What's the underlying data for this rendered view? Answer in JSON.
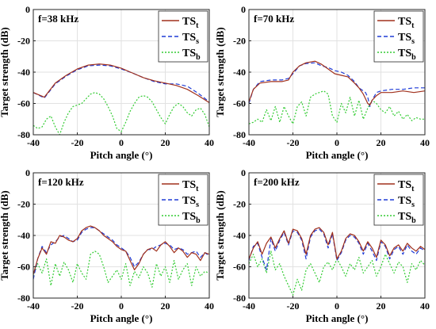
{
  "chart_data": [
    {
      "type": "line",
      "title": "f=38 kHz",
      "xlabel": "Pitch angle (°)",
      "ylabel": "Target strength (dB)",
      "xlim": [
        -40,
        40
      ],
      "ylim": [
        -80,
        0
      ],
      "xticks": [
        "-40",
        "-20",
        "0",
        "20",
        "40"
      ],
      "yticks": [
        "0",
        "-20",
        "-40",
        "-60",
        "-80"
      ],
      "grid": true,
      "legend_position": "top-right",
      "colors": {
        "TSt": "#a0301c",
        "TSs": "#1f3bd6",
        "TSb": "#33cc33"
      },
      "series": [
        {
          "name": "TSt",
          "x": [
            -40,
            -35,
            -30,
            -25,
            -20,
            -15,
            -10,
            -5,
            0,
            5,
            10,
            15,
            20,
            25,
            30,
            35,
            40
          ],
          "y": [
            -53,
            -56,
            -47,
            -42,
            -38,
            -35.5,
            -34.8,
            -35.5,
            -37.5,
            -40.5,
            -43.5,
            -45.5,
            -47,
            -48.5,
            -51,
            -55,
            -59.5
          ]
        },
        {
          "name": "TSs",
          "x": [
            -40,
            -35,
            -30,
            -25,
            -20,
            -15,
            -10,
            -5,
            0,
            5,
            10,
            15,
            20,
            25,
            30,
            35,
            40
          ],
          "y": [
            -53,
            -56.5,
            -47.5,
            -42.5,
            -38.5,
            -36,
            -35.5,
            -36,
            -38,
            -40.5,
            -43.5,
            -46,
            -47.5,
            -47.5,
            -49,
            -53.5,
            -59
          ]
        },
        {
          "name": "TSb",
          "x": [
            -40,
            -38,
            -36,
            -34,
            -32,
            -30,
            -28,
            -26,
            -24,
            -22,
            -20,
            -18,
            -16,
            -14,
            -12,
            -10,
            -8,
            -6,
            -4,
            -2,
            0,
            2,
            4,
            6,
            8,
            10,
            12,
            14,
            16,
            18,
            20,
            22,
            24,
            26,
            28,
            30,
            32,
            34,
            36,
            38,
            40
          ],
          "y": [
            -74,
            -76,
            -75,
            -70,
            -68,
            -75,
            -80,
            -72,
            -66,
            -62,
            -61,
            -60,
            -57,
            -54,
            -53,
            -54,
            -57,
            -62,
            -68,
            -76,
            -78,
            -72,
            -65,
            -60,
            -56,
            -55,
            -56,
            -59,
            -64,
            -69,
            -73,
            -67,
            -62,
            -60,
            -62,
            -66,
            -68,
            -64,
            -63,
            -67,
            -75
          ]
        }
      ]
    },
    {
      "type": "line",
      "title": "f=70 kHz",
      "xlabel": "Pitch angle (°)",
      "ylabel": "Target strength (dB)",
      "xlim": [
        -40,
        40
      ],
      "ylim": [
        -80,
        0
      ],
      "xticks": [
        "-40",
        "-20",
        "0",
        "20",
        "40"
      ],
      "yticks": [
        "0",
        "-20",
        "-40",
        "-60",
        "-80"
      ],
      "grid": true,
      "legend_position": "top-right",
      "colors": {
        "TSt": "#a0301c",
        "TSs": "#1f3bd6",
        "TSb": "#33cc33"
      },
      "series": [
        {
          "name": "TSt",
          "x": [
            -40,
            -38,
            -35,
            -30,
            -25,
            -22,
            -20,
            -17,
            -14,
            -10,
            -7,
            -4,
            -1,
            2,
            5,
            8,
            10,
            12,
            13,
            14,
            15,
            16,
            18,
            20,
            25,
            30,
            35,
            40
          ],
          "y": [
            -59,
            -51,
            -47,
            -46,
            -46,
            -45,
            -40,
            -36,
            -34,
            -33,
            -35,
            -38,
            -41,
            -42,
            -43,
            -47,
            -50,
            -54,
            -57,
            -60,
            -61,
            -58,
            -55,
            -53,
            -53,
            -52,
            -53,
            -52
          ]
        },
        {
          "name": "TSs",
          "x": [
            -40,
            -38,
            -35,
            -30,
            -25,
            -22,
            -20,
            -17,
            -14,
            -10,
            -7,
            -4,
            -1,
            2,
            5,
            8,
            10,
            12,
            13,
            14,
            15,
            16,
            18,
            20,
            25,
            30,
            35,
            40
          ],
          "y": [
            -60,
            -51,
            -46,
            -45,
            -45,
            -44,
            -41,
            -36,
            -34.5,
            -34,
            -36,
            -37,
            -39,
            -40,
            -42,
            -46,
            -50,
            -52,
            -53,
            -56,
            -62,
            -58,
            -53,
            -52,
            -51,
            -51,
            -50,
            -50
          ]
        },
        {
          "name": "TSb",
          "x": [
            -40,
            -38,
            -36,
            -34,
            -32,
            -30,
            -28,
            -26,
            -24,
            -22,
            -20,
            -18,
            -16,
            -14,
            -12,
            -10,
            -8,
            -6,
            -4,
            -2,
            0,
            2,
            4,
            6,
            8,
            10,
            12,
            14,
            16,
            18,
            20,
            22,
            24,
            26,
            28,
            30,
            32,
            34,
            36,
            38,
            40
          ],
          "y": [
            -73,
            -72,
            -70,
            -72,
            -64,
            -71,
            -62,
            -72,
            -62,
            -68,
            -73,
            -62,
            -59,
            -68,
            -56,
            -54,
            -53,
            -52,
            -54,
            -68,
            -72,
            -60,
            -66,
            -56,
            -68,
            -58,
            -70,
            -63,
            -58,
            -60,
            -64,
            -66,
            -62,
            -68,
            -65,
            -70,
            -67,
            -71,
            -69,
            -70,
            -70
          ]
        }
      ]
    },
    {
      "type": "line",
      "title": "f=120 kHz",
      "xlabel": "Pitch angle (°)",
      "ylabel": "Target strength (dB)",
      "xlim": [
        -40,
        40
      ],
      "ylim": [
        -80,
        0
      ],
      "xticks": [
        "-40",
        "-20",
        "0",
        "20",
        "40"
      ],
      "yticks": [
        "0",
        "-20",
        "-40",
        "-60",
        "-80"
      ],
      "grid": true,
      "legend_position": "top-right",
      "colors": {
        "TSt": "#a0301c",
        "TSs": "#1f3bd6",
        "TSb": "#33cc33"
      },
      "series": [
        {
          "name": "TSt",
          "x": [
            -40,
            -38,
            -36,
            -34,
            -32,
            -30,
            -28,
            -26,
            -24,
            -22,
            -20,
            -18,
            -16,
            -14,
            -12,
            -10,
            -8,
            -6,
            -4,
            -2,
            0,
            2,
            4,
            6,
            8,
            10,
            12,
            14,
            16,
            18,
            20,
            22,
            24,
            26,
            28,
            30,
            32,
            34,
            36,
            38,
            40
          ],
          "y": [
            -65,
            -55,
            -48,
            -52,
            -44,
            -45,
            -40,
            -41,
            -43,
            -44,
            -42,
            -37,
            -35,
            -34,
            -35,
            -37,
            -40,
            -42,
            -44,
            -47,
            -49,
            -50,
            -56,
            -62,
            -58,
            -52,
            -49,
            -48,
            -50,
            -46,
            -44,
            -47,
            -51,
            -48,
            -50,
            -54,
            -51,
            -52,
            -56,
            -51,
            -52
          ]
        },
        {
          "name": "TSs",
          "x": [
            -40,
            -38,
            -36,
            -34,
            -32,
            -30,
            -28,
            -26,
            -24,
            -22,
            -20,
            -18,
            -16,
            -14,
            -12,
            -10,
            -8,
            -6,
            -4,
            -2,
            0,
            2,
            4,
            6,
            8,
            10,
            12,
            14,
            16,
            18,
            20,
            22,
            24,
            26,
            28,
            30,
            32,
            34,
            36,
            38,
            40
          ],
          "y": [
            -68,
            -55,
            -47,
            -51,
            -46,
            -44,
            -41,
            -40,
            -42,
            -44,
            -43,
            -38,
            -36,
            -35,
            -35,
            -37,
            -39,
            -41,
            -43,
            -46,
            -48,
            -50,
            -54,
            -60,
            -57,
            -52,
            -49,
            -49,
            -47,
            -46,
            -45,
            -46,
            -49,
            -48,
            -49,
            -52,
            -51,
            -50,
            -54,
            -51,
            -53
          ]
        },
        {
          "name": "TSb",
          "x": [
            -40,
            -38,
            -36,
            -34,
            -32,
            -30,
            -28,
            -26,
            -24,
            -22,
            -20,
            -18,
            -16,
            -14,
            -12,
            -10,
            -8,
            -6,
            -4,
            -2,
            0,
            2,
            4,
            6,
            8,
            10,
            12,
            14,
            16,
            18,
            20,
            22,
            24,
            26,
            28,
            30,
            32,
            34,
            36,
            38,
            40
          ],
          "y": [
            -66,
            -58,
            -64,
            -55,
            -72,
            -58,
            -66,
            -57,
            -62,
            -70,
            -58,
            -64,
            -68,
            -52,
            -50,
            -52,
            -60,
            -70,
            -66,
            -62,
            -68,
            -58,
            -72,
            -63,
            -67,
            -60,
            -64,
            -73,
            -58,
            -66,
            -60,
            -70,
            -56,
            -68,
            -62,
            -58,
            -72,
            -60,
            -66,
            -63,
            -64
          ]
        }
      ]
    },
    {
      "type": "line",
      "title": "f=200 kHz",
      "xlabel": "Pitch angle (°)",
      "ylabel": "Target strength (dB)",
      "xlim": [
        -40,
        40
      ],
      "ylim": [
        -80,
        0
      ],
      "xticks": [
        "-40",
        "-20",
        "0",
        "20",
        "40"
      ],
      "yticks": [
        "0",
        "-20",
        "-40",
        "-60",
        "-80"
      ],
      "grid": true,
      "legend_position": "top-right",
      "colors": {
        "TSt": "#a0301c",
        "TSs": "#1f3bd6",
        "TSb": "#33cc33"
      },
      "series": [
        {
          "name": "TSt",
          "x": [
            -40,
            -38,
            -36,
            -34,
            -32,
            -30,
            -28,
            -26,
            -24,
            -22,
            -20,
            -18,
            -16,
            -14,
            -12,
            -10,
            -8,
            -6,
            -4,
            -2,
            0,
            2,
            4,
            6,
            8,
            10,
            12,
            14,
            16,
            18,
            20,
            22,
            24,
            26,
            28,
            30,
            32,
            34,
            36,
            38,
            40
          ],
          "y": [
            -55,
            -48,
            -44,
            -52,
            -45,
            -41,
            -48,
            -42,
            -37,
            -45,
            -36,
            -37,
            -42,
            -52,
            -40,
            -36,
            -35,
            -38,
            -46,
            -38,
            -55,
            -50,
            -42,
            -39,
            -40,
            -44,
            -50,
            -44,
            -48,
            -54,
            -43,
            -46,
            -53,
            -48,
            -46,
            -50,
            -45,
            -48,
            -50,
            -47,
            -49
          ]
        },
        {
          "name": "TSs",
          "x": [
            -40,
            -38,
            -36,
            -34,
            -32,
            -30,
            -28,
            -26,
            -24,
            -22,
            -20,
            -18,
            -16,
            -14,
            -12,
            -10,
            -8,
            -6,
            -4,
            -2,
            0,
            2,
            4,
            6,
            8,
            10,
            12,
            14,
            16,
            18,
            20,
            22,
            24,
            26,
            28,
            30,
            32,
            34,
            36,
            38,
            40
          ],
          "y": [
            -56,
            -47,
            -45,
            -54,
            -62,
            -42,
            -50,
            -43,
            -38,
            -46,
            -37,
            -38,
            -43,
            -55,
            -41,
            -37,
            -36,
            -39,
            -48,
            -39,
            -56,
            -51,
            -43,
            -40,
            -41,
            -45,
            -52,
            -45,
            -50,
            -56,
            -44,
            -47,
            -55,
            -49,
            -47,
            -52,
            -46,
            -50,
            -52,
            -48,
            -50
          ]
        },
        {
          "name": "TSb",
          "x": [
            -40,
            -38,
            -36,
            -34,
            -32,
            -30,
            -28,
            -26,
            -24,
            -22,
            -20,
            -18,
            -16,
            -14,
            -12,
            -10,
            -8,
            -6,
            -4,
            -2,
            0,
            2,
            4,
            6,
            8,
            10,
            12,
            14,
            16,
            18,
            20,
            22,
            24,
            26,
            28,
            30,
            32,
            34,
            36,
            38,
            40
          ],
          "y": [
            -58,
            -52,
            -60,
            -55,
            -64,
            -50,
            -62,
            -58,
            -66,
            -72,
            -78,
            -68,
            -75,
            -62,
            -58,
            -64,
            -70,
            -60,
            -57,
            -62,
            -55,
            -60,
            -66,
            -58,
            -62,
            -54,
            -64,
            -60,
            -56,
            -66,
            -60,
            -52,
            -58,
            -64,
            -57,
            -60,
            -70,
            -58,
            -62,
            -56,
            -59
          ]
        }
      ]
    }
  ]
}
